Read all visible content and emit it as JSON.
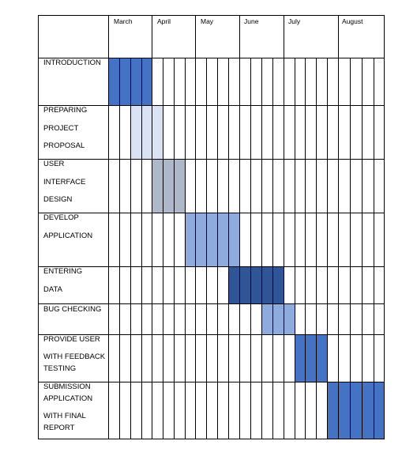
{
  "months": [
    "March",
    "April",
    "May",
    "June",
    "July",
    "August"
  ],
  "tasks": [
    {
      "lines": [
        "INTRODUCTION"
      ],
      "start": 0,
      "end": 4,
      "color": "#4472C4"
    },
    {
      "lines": [
        "PREPARING",
        "PROJECT",
        "PROPOSAL"
      ],
      "start": 2,
      "end": 5,
      "color": "#DAE3F3"
    },
    {
      "lines": [
        "USER",
        "INTERFACE",
        "DESIGN"
      ],
      "start": 4,
      "end": 7,
      "color": "#ADB9CA"
    },
    {
      "lines": [
        "DEVELOP",
        "APPLICATION"
      ],
      "start": 7,
      "end": 12,
      "color": "#8FAADC"
    },
    {
      "lines": [
        "ENTERING",
        "DATA"
      ],
      "start": 11,
      "end": 16,
      "color": "#2F5597"
    },
    {
      "lines": [
        "BUG CHECKING"
      ],
      "start": 14,
      "end": 17,
      "color": "#8FAADC"
    },
    {
      "lines": [
        "PROVIDE USER",
        "WITH FEEDBACK",
        "TESTING"
      ],
      "start": 17,
      "end": 20,
      "color": "#4472C4"
    },
    {
      "lines": [
        "SUBMISSION",
        "APPLICATION",
        "WITH FINAL",
        "REPORT"
      ],
      "start": 20,
      "end": 25,
      "color": "#4472C4"
    }
  ]
}
